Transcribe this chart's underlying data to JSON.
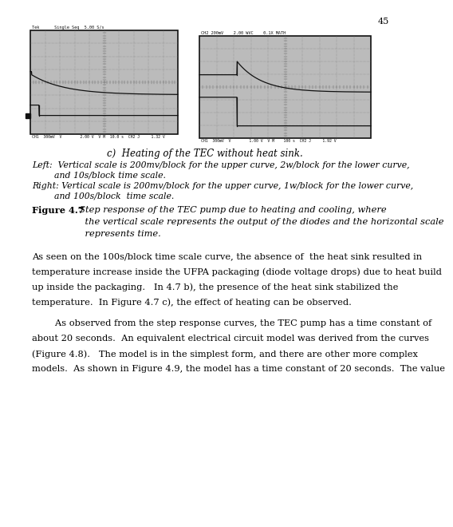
{
  "page_number": "45",
  "bg": "#ffffff",
  "osc_bg": "#bbbbbb",
  "osc_grid": "#777777",
  "left_header": "Tek      Single Seq  5.00 S/s",
  "left_footer": "CH1  300mV  V        2.00 V  V M  10.0 s  CH2 J     1.32 V",
  "right_header": "CH2 200mV    2.00 WVC    0.1X MATH",
  "right_footer": "CH1  300mV  V        1.00 V  V M    100 s  CH2 J     1.92 V",
  "caption_c": "c)  Heating of the TEC without heat sink.",
  "left_caption_line1": "Left:  Vertical scale is 200mv/block for the upper curve, 2w/block for the lower curve,",
  "left_caption_line2": "        and 10s/block time scale.",
  "right_caption_line1": "Right: Vertical scale is 200mv/block for the upper curve, 1w/block for the lower curve,",
  "right_caption_line2": "        and 100s/block  time scale.",
  "fig_label": "Figure 4.7",
  "fig_caption_rest": "  Step response of the TEC pump due to heating and cooling, where\n    the vertical scale represents the output of the diodes and the horizontal scale\n    represents time.",
  "body1_line1": "As seen on the 100s/block time scale curve, the absence of  the heat sink resulted in",
  "body1_line2": "temperature increase inside the UFPA packaging (diode voltage drops) due to heat build",
  "body1_line3": "up inside the packaging.   In 4.7 b), the presence of the heat sink stabilized the",
  "body1_line4": "temperature.  In Figure 4.7 c), the effect of heating can be observed.",
  "body2_line1": "        As observed from the step response curves, the TEC pump has a time constant of",
  "body2_line2": "about 20 seconds.  An equivalent electrical circuit model was derived from the curves",
  "body2_line3": "(Figure 4.8).   The model is in the simplest form, and there are other more complex",
  "body2_line4": "models.  As shown in Figure 4.9, the model has a time constant of 20 seconds.  The value"
}
